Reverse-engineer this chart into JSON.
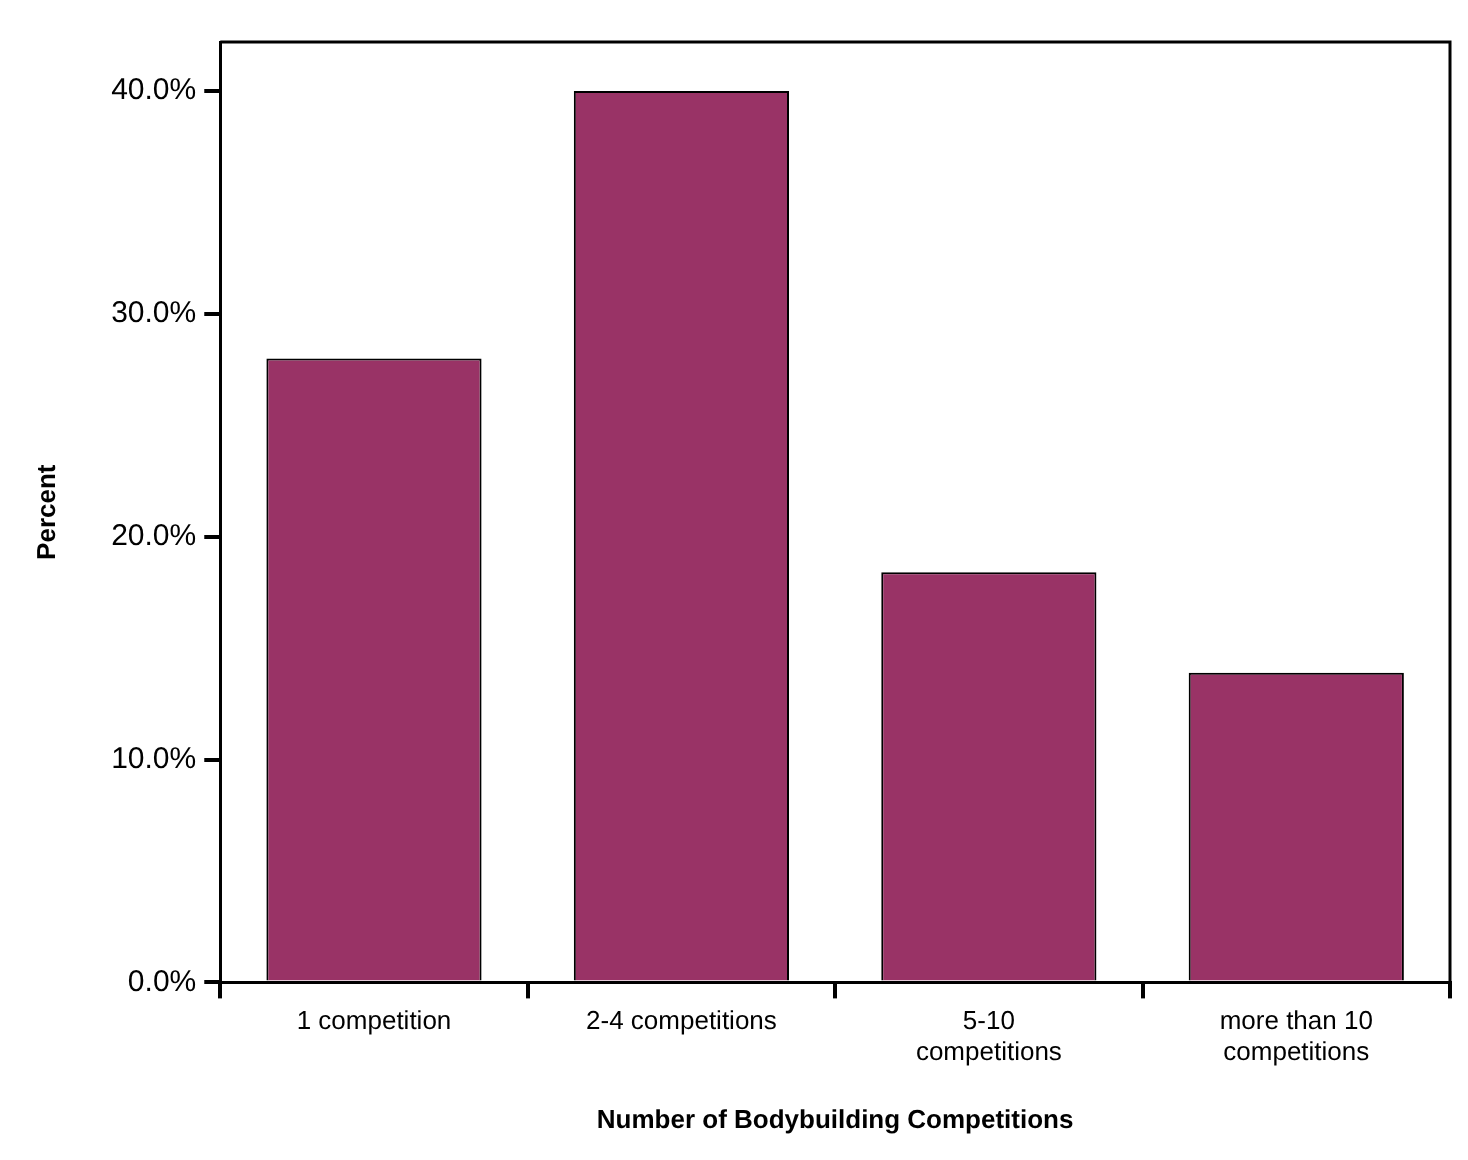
{
  "chart_data": {
    "type": "bar",
    "xlabel": "Number of Bodybuilding Competitions",
    "ylabel": "Percent",
    "categories": [
      "1 competition",
      "2-4 competitions",
      "5-10 competitions",
      "more than 10 competitions"
    ],
    "values": [
      28.0,
      40.0,
      18.4,
      13.9
    ],
    "color": "#993366",
    "ylim": [
      0,
      42.2
    ],
    "yticks": [
      {
        "value": 0,
        "label": "0.0%"
      },
      {
        "value": 10,
        "label": "10.0%"
      },
      {
        "value": 20,
        "label": "20.0%"
      },
      {
        "value": 30,
        "label": "30.0%"
      },
      {
        "value": 40,
        "label": "40.0%"
      }
    ],
    "grid": false,
    "legend": false
  }
}
